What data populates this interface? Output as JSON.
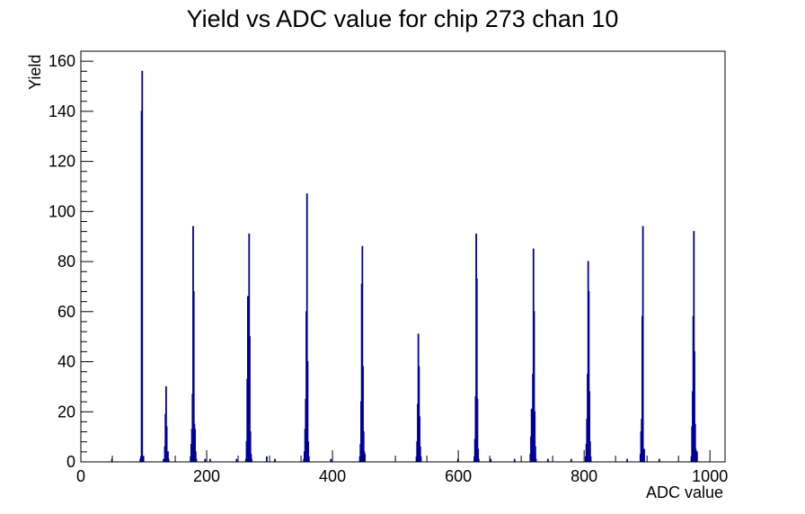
{
  "chart_data": {
    "type": "histogram",
    "title": "Yield vs ADC value for chip 273 chan 10",
    "xlabel": "ADC value",
    "ylabel": "Yield",
    "xlim": [
      0,
      1024
    ],
    "ylim": [
      0,
      164
    ],
    "x_ticks": [
      0,
      200,
      400,
      600,
      800,
      1000
    ],
    "y_ticks": [
      0,
      20,
      40,
      60,
      80,
      100,
      120,
      140,
      160
    ],
    "line_color": "#000099",
    "grid": false,
    "legend": "none",
    "bins": [
      {
        "x": 49,
        "y": 1
      },
      {
        "x": 94,
        "y": 1
      },
      {
        "x": 95,
        "y": 2
      },
      {
        "x": 96,
        "y": 140
      },
      {
        "x": 97,
        "y": 156
      },
      {
        "x": 98,
        "y": 2
      },
      {
        "x": 99,
        "y": 1
      },
      {
        "x": 131,
        "y": 1
      },
      {
        "x": 133,
        "y": 6
      },
      {
        "x": 134,
        "y": 19
      },
      {
        "x": 135,
        "y": 30
      },
      {
        "x": 136,
        "y": 14
      },
      {
        "x": 137,
        "y": 3
      },
      {
        "x": 138,
        "y": 4
      },
      {
        "x": 139,
        "y": 1
      },
      {
        "x": 174,
        "y": 2
      },
      {
        "x": 175,
        "y": 7
      },
      {
        "x": 176,
        "y": 13
      },
      {
        "x": 177,
        "y": 27
      },
      {
        "x": 178,
        "y": 94
      },
      {
        "x": 179,
        "y": 68
      },
      {
        "x": 180,
        "y": 15
      },
      {
        "x": 181,
        "y": 13
      },
      {
        "x": 182,
        "y": 4
      },
      {
        "x": 183,
        "y": 1
      },
      {
        "x": 197,
        "y": 1
      },
      {
        "x": 205,
        "y": 1
      },
      {
        "x": 247,
        "y": 1
      },
      {
        "x": 262,
        "y": 1
      },
      {
        "x": 263,
        "y": 8
      },
      {
        "x": 264,
        "y": 33
      },
      {
        "x": 265,
        "y": 66
      },
      {
        "x": 266,
        "y": 30
      },
      {
        "x": 267,
        "y": 91
      },
      {
        "x": 268,
        "y": 50
      },
      {
        "x": 269,
        "y": 12
      },
      {
        "x": 270,
        "y": 3
      },
      {
        "x": 271,
        "y": 1
      },
      {
        "x": 295,
        "y": 2
      },
      {
        "x": 308,
        "y": 1
      },
      {
        "x": 354,
        "y": 1
      },
      {
        "x": 355,
        "y": 4
      },
      {
        "x": 356,
        "y": 13
      },
      {
        "x": 357,
        "y": 25
      },
      {
        "x": 358,
        "y": 60
      },
      {
        "x": 359,
        "y": 107
      },
      {
        "x": 360,
        "y": 40
      },
      {
        "x": 361,
        "y": 8
      },
      {
        "x": 362,
        "y": 2
      },
      {
        "x": 397,
        "y": 1
      },
      {
        "x": 443,
        "y": 2
      },
      {
        "x": 444,
        "y": 7
      },
      {
        "x": 445,
        "y": 24
      },
      {
        "x": 446,
        "y": 71
      },
      {
        "x": 447,
        "y": 86
      },
      {
        "x": 448,
        "y": 38
      },
      {
        "x": 449,
        "y": 12
      },
      {
        "x": 450,
        "y": 4
      },
      {
        "x": 451,
        "y": 3
      },
      {
        "x": 533,
        "y": 2
      },
      {
        "x": 534,
        "y": 8
      },
      {
        "x": 535,
        "y": 23
      },
      {
        "x": 536,
        "y": 51
      },
      {
        "x": 537,
        "y": 38
      },
      {
        "x": 538,
        "y": 18
      },
      {
        "x": 539,
        "y": 6
      },
      {
        "x": 540,
        "y": 2
      },
      {
        "x": 599,
        "y": 1
      },
      {
        "x": 625,
        "y": 2
      },
      {
        "x": 626,
        "y": 9
      },
      {
        "x": 627,
        "y": 26
      },
      {
        "x": 628,
        "y": 91
      },
      {
        "x": 629,
        "y": 73
      },
      {
        "x": 630,
        "y": 25
      },
      {
        "x": 631,
        "y": 5
      },
      {
        "x": 632,
        "y": 1
      },
      {
        "x": 651,
        "y": 1
      },
      {
        "x": 689,
        "y": 1
      },
      {
        "x": 714,
        "y": 3
      },
      {
        "x": 715,
        "y": 10
      },
      {
        "x": 716,
        "y": 21
      },
      {
        "x": 717,
        "y": 9
      },
      {
        "x": 718,
        "y": 35
      },
      {
        "x": 719,
        "y": 85
      },
      {
        "x": 720,
        "y": 60
      },
      {
        "x": 721,
        "y": 20
      },
      {
        "x": 722,
        "y": 6
      },
      {
        "x": 723,
        "y": 1
      },
      {
        "x": 742,
        "y": 1
      },
      {
        "x": 779,
        "y": 1
      },
      {
        "x": 802,
        "y": 2
      },
      {
        "x": 803,
        "y": 7
      },
      {
        "x": 804,
        "y": 17
      },
      {
        "x": 805,
        "y": 35
      },
      {
        "x": 806,
        "y": 80
      },
      {
        "x": 807,
        "y": 68
      },
      {
        "x": 808,
        "y": 28
      },
      {
        "x": 809,
        "y": 8
      },
      {
        "x": 810,
        "y": 2
      },
      {
        "x": 868,
        "y": 1
      },
      {
        "x": 889,
        "y": 3
      },
      {
        "x": 890,
        "y": 12
      },
      {
        "x": 891,
        "y": 17
      },
      {
        "x": 892,
        "y": 58
      },
      {
        "x": 893,
        "y": 94
      },
      {
        "x": 894,
        "y": 3
      },
      {
        "x": 895,
        "y": 5
      },
      {
        "x": 919,
        "y": 1
      },
      {
        "x": 970,
        "y": 2
      },
      {
        "x": 971,
        "y": 14
      },
      {
        "x": 972,
        "y": 28
      },
      {
        "x": 973,
        "y": 58
      },
      {
        "x": 974,
        "y": 92
      },
      {
        "x": 975,
        "y": 44
      },
      {
        "x": 976,
        "y": 15
      },
      {
        "x": 977,
        "y": 5
      },
      {
        "x": 978,
        "y": 2
      },
      {
        "x": 979,
        "y": 4
      }
    ]
  }
}
